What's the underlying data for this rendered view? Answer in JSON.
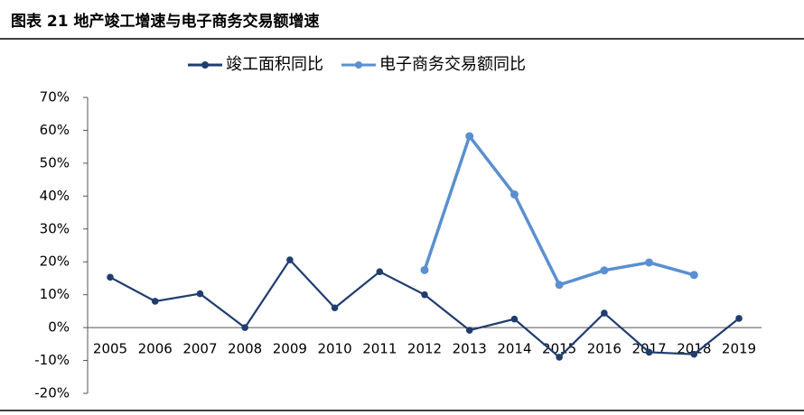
{
  "chart_data": {
    "type": "line",
    "title": "图表 21 地产竣工增速与电子商务交易额增速",
    "categories": [
      "2005",
      "2006",
      "2007",
      "2008",
      "2009",
      "2010",
      "2011",
      "2012",
      "2013",
      "2014",
      "2015",
      "2016",
      "2017",
      "2018",
      "2019"
    ],
    "series": [
      {
        "name": "竣工面积同比",
        "color": "#1f3d6e",
        "values": [
          15.3,
          8.0,
          10.3,
          0.0,
          20.6,
          6.0,
          17.0,
          10.0,
          -0.8,
          2.6,
          -9.0,
          4.4,
          -7.5,
          -8.1,
          2.8
        ]
      },
      {
        "name": "电子商务交易额同比",
        "color": "#5b8fd0",
        "values": [
          null,
          null,
          null,
          null,
          null,
          null,
          null,
          17.5,
          58.2,
          40.5,
          13.0,
          17.4,
          19.8,
          16.0,
          null
        ]
      }
    ],
    "ylim": [
      -20,
      70
    ],
    "yticks": [
      {
        "value": -20,
        "label": "-20%"
      },
      {
        "value": -10,
        "label": "-10%"
      },
      {
        "value": 0,
        "label": "0%"
      },
      {
        "value": 10,
        "label": "10%"
      },
      {
        "value": 20,
        "label": "20%"
      },
      {
        "value": 30,
        "label": "30%"
      },
      {
        "value": 40,
        "label": "40%"
      },
      {
        "value": 50,
        "label": "50%"
      },
      {
        "value": 60,
        "label": "60%"
      },
      {
        "value": 70,
        "label": "70%"
      }
    ],
    "legend": "top"
  }
}
